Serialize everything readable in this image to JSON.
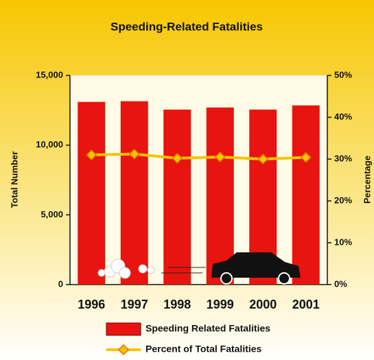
{
  "chart_data": {
    "type": "bar",
    "title": "Speeding-Related Fatalities",
    "categories": [
      "1996",
      "1997",
      "1998",
      "1999",
      "2000",
      "2001"
    ],
    "series": [
      {
        "name": "Speeding Related Fatalities",
        "type": "bar",
        "color": "#e8140f",
        "values": [
          13100,
          13150,
          12550,
          12700,
          12550,
          12850
        ]
      },
      {
        "name": "Percent of Total Fatalities",
        "type": "line",
        "axis": "y2",
        "color": "#f5c400",
        "values": [
          31,
          31.2,
          30.2,
          30.5,
          30,
          30.4
        ]
      }
    ],
    "y_label": "Total Number",
    "y2_label": "Percentage",
    "ylim": [
      0,
      15000
    ],
    "yticks": [
      0,
      {
        "value": 5000,
        "label": "5,000"
      },
      {
        "value": 10000,
        "label": "10,000"
      },
      {
        "value": 15000,
        "label": "15,000"
      }
    ],
    "y2lim": [
      0,
      50
    ],
    "y2ticks": [
      {
        "value": 0,
        "label": "0%"
      },
      {
        "value": 10,
        "label": "10%"
      },
      {
        "value": 20,
        "label": "20%"
      },
      {
        "value": 30,
        "label": "30%"
      },
      {
        "value": 40,
        "label": "40%"
      },
      {
        "value": 50,
        "label": "50%"
      }
    ]
  }
}
